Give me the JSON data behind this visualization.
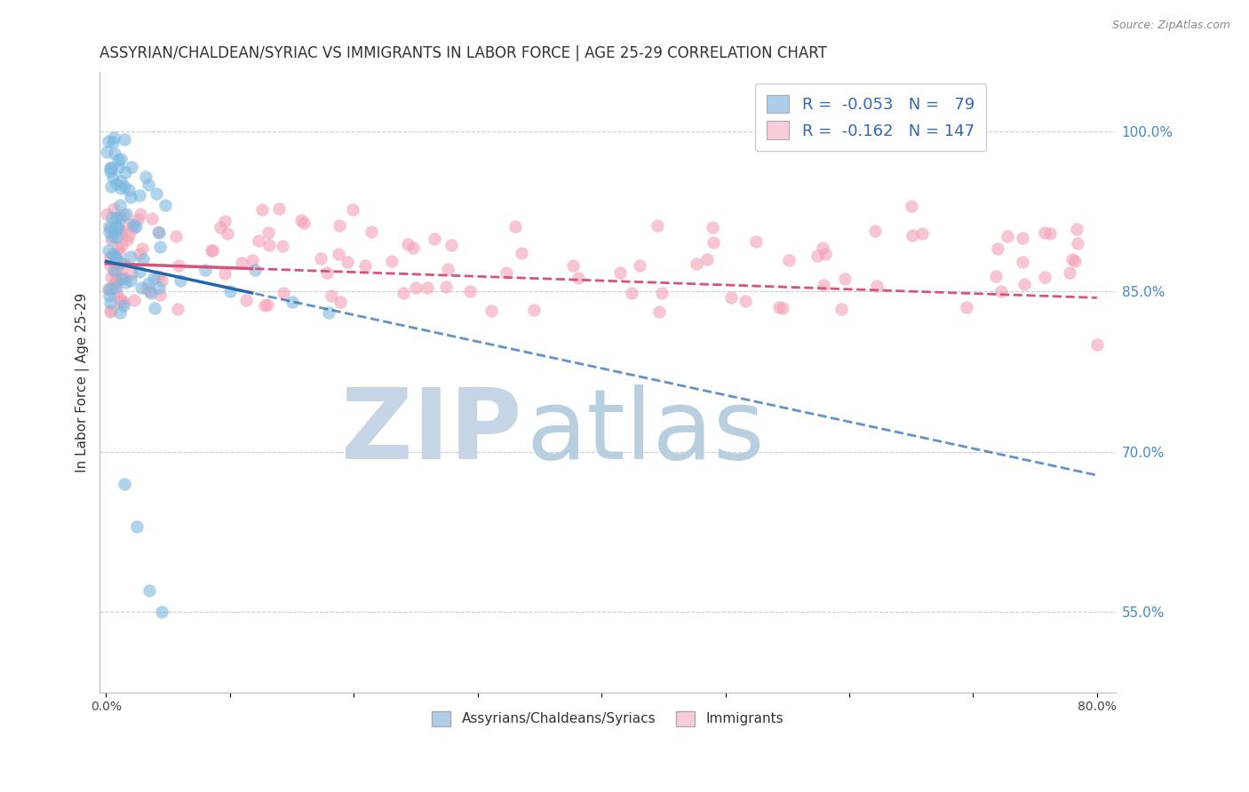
{
  "title": "ASSYRIAN/CHALDEAN/SYRIAC VS IMMIGRANTS IN LABOR FORCE | AGE 25-29 CORRELATION CHART",
  "source": "Source: ZipAtlas.com",
  "ylabel": "In Labor Force | Age 25-29",
  "xlim": [
    -0.005,
    0.815
  ],
  "ylim": [
    0.475,
    1.055
  ],
  "xticks": [
    0.0,
    0.1,
    0.2,
    0.3,
    0.4,
    0.5,
    0.6,
    0.7,
    0.8
  ],
  "xticklabels": [
    "0.0%",
    "",
    "",
    "",
    "",
    "",
    "",
    "",
    "80.0%"
  ],
  "ytick_right_vals": [
    0.55,
    0.7,
    0.85,
    1.0
  ],
  "ytick_right_labels": [
    "55.0%",
    "70.0%",
    "85.0%",
    "100.0%"
  ],
  "legend_blue_R": "-0.053",
  "legend_blue_N": "79",
  "legend_pink_R": "-0.162",
  "legend_pink_N": "147",
  "legend_label_blue": "Assyrians/Chaldeans/Syriacs",
  "legend_label_pink": "Immigrants",
  "blue_color": "#7ab8e0",
  "blue_line_color": "#2166ac",
  "blue_legend_fill": "#aecde8",
  "pink_color": "#f4a0b5",
  "pink_line_color": "#d6537a",
  "pink_legend_fill": "#f9cdd8",
  "watermark_zip_color": "#c5d5e5",
  "watermark_atlas_color": "#b8cfe0",
  "title_fontsize": 12,
  "axis_label_fontsize": 11,
  "tick_fontsize": 10
}
